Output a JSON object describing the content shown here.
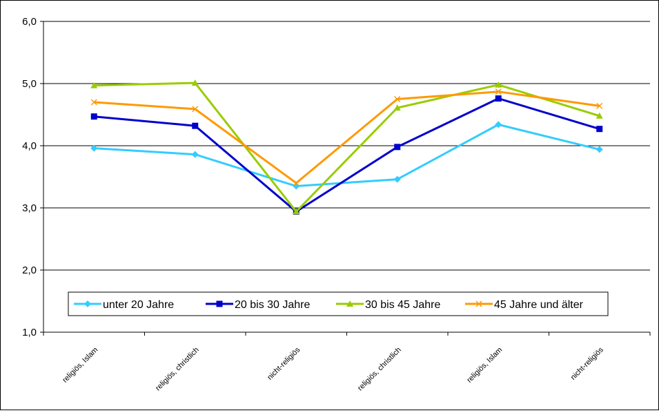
{
  "chart_data": {
    "type": "line",
    "categories": [
      "religiös, Islam",
      "religiös, christlich",
      "nicht-religiös",
      "religiös, christlich",
      "religiös, Islam",
      "nicht-religiös"
    ],
    "ylim": [
      1.0,
      6.0
    ],
    "yticks": [
      "1,0",
      "2,0",
      "3,0",
      "4,0",
      "5,0",
      "6,0"
    ],
    "grid": true,
    "legend_position": "bottom-inside",
    "series": [
      {
        "name": "unter 20 Jahre",
        "color": "#33CCFF",
        "marker": "diamond",
        "values": [
          3.96,
          3.86,
          3.35,
          3.46,
          4.34,
          3.94
        ]
      },
      {
        "name": "20 bis 30 Jahre",
        "color": "#0000CC",
        "marker": "square",
        "values": [
          4.47,
          4.32,
          2.94,
          3.98,
          4.76,
          4.27
        ]
      },
      {
        "name": "30 bis 45 Jahre",
        "color": "#99CC00",
        "marker": "triangle",
        "values": [
          4.97,
          5.01,
          2.94,
          4.61,
          4.98,
          4.48
        ]
      },
      {
        "name": "45 Jahre und älter",
        "color": "#FF9900",
        "marker": "x",
        "values": [
          4.7,
          4.59,
          3.4,
          4.75,
          4.87,
          4.64
        ]
      }
    ]
  }
}
